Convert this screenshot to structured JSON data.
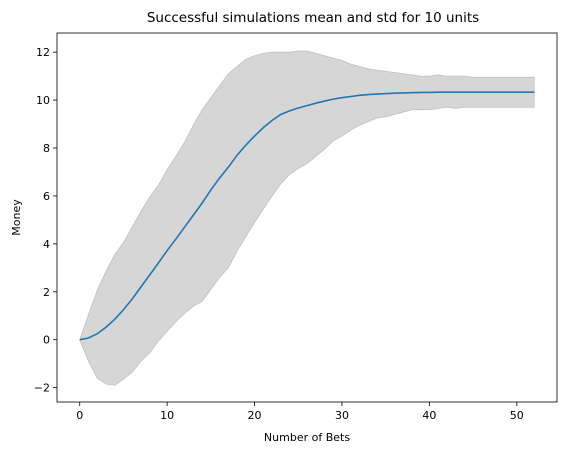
{
  "chart_data": {
    "type": "line",
    "title": "Successful simulations mean and std for 10 units",
    "xlabel": "Number of Bets",
    "ylabel": "Money",
    "xlim": [
      -2.6,
      54.6
    ],
    "ylim": [
      -2.6,
      12.8
    ],
    "xticks": [
      0,
      10,
      20,
      30,
      40,
      50
    ],
    "yticks": [
      -2,
      0,
      2,
      4,
      6,
      8,
      10,
      12
    ],
    "ytick_labels": [
      "−2",
      "0",
      "2",
      "4",
      "6",
      "8",
      "10",
      "12"
    ],
    "grid": false,
    "legend": "none",
    "colors": {
      "mean": "#1f77b4",
      "band": "#d6d6d6",
      "band_edge": "#c0c0c0"
    },
    "series": [
      {
        "kind": "band",
        "x": [
          0,
          1,
          2,
          3,
          4,
          5,
          6,
          7,
          8,
          9,
          10,
          11,
          12,
          13,
          14,
          15,
          16,
          17,
          18,
          19,
          20,
          21,
          22,
          23,
          24,
          25,
          26,
          27,
          28,
          29,
          30,
          31,
          32,
          33,
          34,
          35,
          36,
          37,
          38,
          39,
          40,
          41,
          42,
          43,
          44,
          45,
          46,
          47,
          48,
          49,
          50,
          51,
          52
        ],
        "lower": [
          0,
          -0.9,
          -1.6,
          -1.85,
          -1.9,
          -1.65,
          -1.35,
          -0.9,
          -0.55,
          -0.05,
          0.35,
          0.75,
          1.1,
          1.4,
          1.6,
          2.1,
          2.6,
          3.0,
          3.7,
          4.3,
          4.9,
          5.45,
          6.0,
          6.5,
          6.9,
          7.15,
          7.35,
          7.65,
          7.95,
          8.3,
          8.5,
          8.75,
          8.95,
          9.1,
          9.25,
          9.3,
          9.4,
          9.5,
          9.6,
          9.6,
          9.6,
          9.65,
          9.7,
          9.65,
          9.7,
          9.7,
          9.7,
          9.7,
          9.7,
          9.7,
          9.7,
          9.7,
          9.7
        ],
        "upper": [
          0,
          1.05,
          2.05,
          2.85,
          3.55,
          4.05,
          4.7,
          5.35,
          5.95,
          6.45,
          7.1,
          7.65,
          8.25,
          8.95,
          9.6,
          10.1,
          10.6,
          11.1,
          11.4,
          11.7,
          11.85,
          11.95,
          12.0,
          12.0,
          12.0,
          12.05,
          12.05,
          11.95,
          11.85,
          11.75,
          11.65,
          11.5,
          11.4,
          11.3,
          11.25,
          11.2,
          11.15,
          11.1,
          11.05,
          11.0,
          11.0,
          11.05,
          11.0,
          11.0,
          11.0,
          10.95,
          10.95,
          10.95,
          10.95,
          10.95,
          10.95,
          10.95,
          10.95
        ]
      },
      {
        "kind": "line",
        "x": [
          0,
          1,
          2,
          3,
          4,
          5,
          6,
          7,
          8,
          9,
          10,
          11,
          12,
          13,
          14,
          15,
          16,
          17,
          18,
          19,
          20,
          21,
          22,
          23,
          24,
          25,
          26,
          27,
          28,
          29,
          30,
          31,
          32,
          33,
          34,
          35,
          36,
          37,
          38,
          39,
          40,
          41,
          42,
          43,
          44,
          45,
          46,
          47,
          48,
          49,
          50,
          51,
          52
        ],
        "y": [
          0,
          0.07,
          0.25,
          0.52,
          0.85,
          1.25,
          1.7,
          2.2,
          2.7,
          3.2,
          3.72,
          4.2,
          4.7,
          5.2,
          5.7,
          6.25,
          6.75,
          7.2,
          7.7,
          8.12,
          8.5,
          8.85,
          9.15,
          9.4,
          9.55,
          9.67,
          9.77,
          9.87,
          9.96,
          10.04,
          10.1,
          10.15,
          10.2,
          10.23,
          10.25,
          10.27,
          10.29,
          10.3,
          10.31,
          10.32,
          10.32,
          10.33,
          10.33,
          10.33,
          10.33,
          10.33,
          10.33,
          10.33,
          10.33,
          10.33,
          10.33,
          10.33,
          10.33
        ]
      }
    ]
  }
}
